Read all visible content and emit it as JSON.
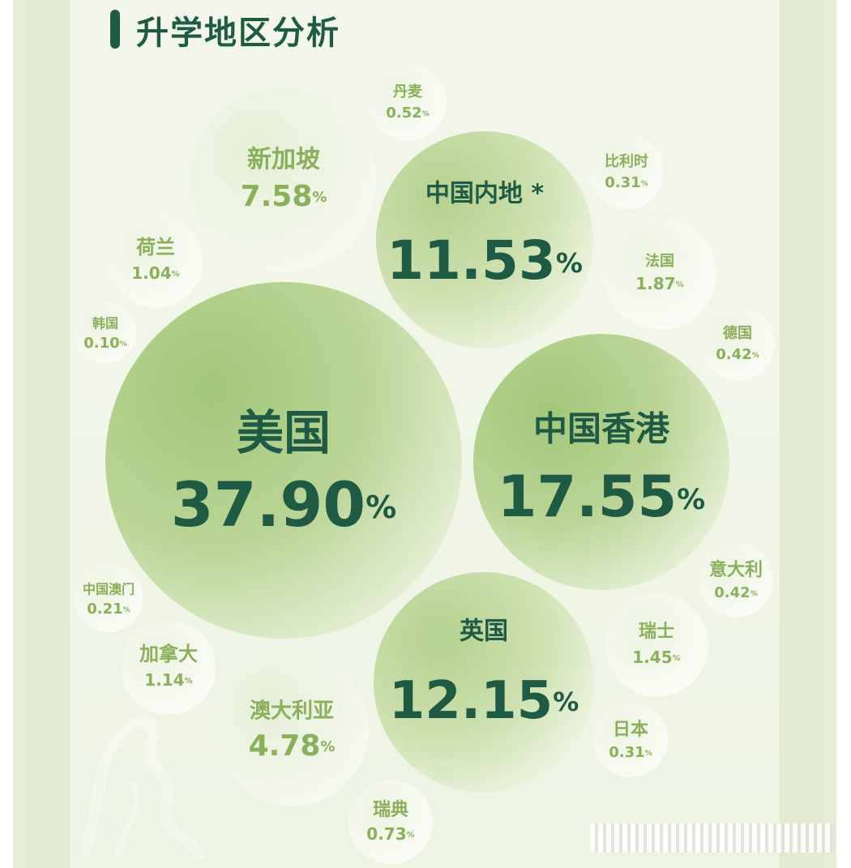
{
  "title": "升学地区分析",
  "percent_sign": "%",
  "chart_data": {
    "type": "bubble",
    "title": "升学地区分析",
    "unit": "%",
    "items": [
      {
        "label": "美国",
        "value": 37.9,
        "display": "37.90"
      },
      {
        "label": "中国香港",
        "value": 17.55,
        "display": "17.55"
      },
      {
        "label": "英国",
        "value": 12.15,
        "display": "12.15"
      },
      {
        "label": "中国内地 *",
        "value": 11.53,
        "display": "11.53"
      },
      {
        "label": "新加坡",
        "value": 7.58,
        "display": "7.58"
      },
      {
        "label": "澳大利亚",
        "value": 4.78,
        "display": "4.78"
      },
      {
        "label": "法国",
        "value": 1.87,
        "display": "1.87"
      },
      {
        "label": "瑞士",
        "value": 1.45,
        "display": "1.45"
      },
      {
        "label": "加拿大",
        "value": 1.14,
        "display": "1.14"
      },
      {
        "label": "荷兰",
        "value": 1.04,
        "display": "1.04"
      },
      {
        "label": "瑞典",
        "value": 0.73,
        "display": "0.73"
      },
      {
        "label": "丹麦",
        "value": 0.52,
        "display": "0.52"
      },
      {
        "label": "德国",
        "value": 0.42,
        "display": "0.42"
      },
      {
        "label": "意大利",
        "value": 0.42,
        "display": "0.42"
      },
      {
        "label": "比利时",
        "value": 0.31,
        "display": "0.31"
      },
      {
        "label": "日本",
        "value": 0.31,
        "display": "0.31"
      },
      {
        "label": "中国澳门",
        "value": 0.21,
        "display": "0.21"
      },
      {
        "label": "韩国",
        "value": 0.1,
        "display": "0.10"
      }
    ]
  }
}
